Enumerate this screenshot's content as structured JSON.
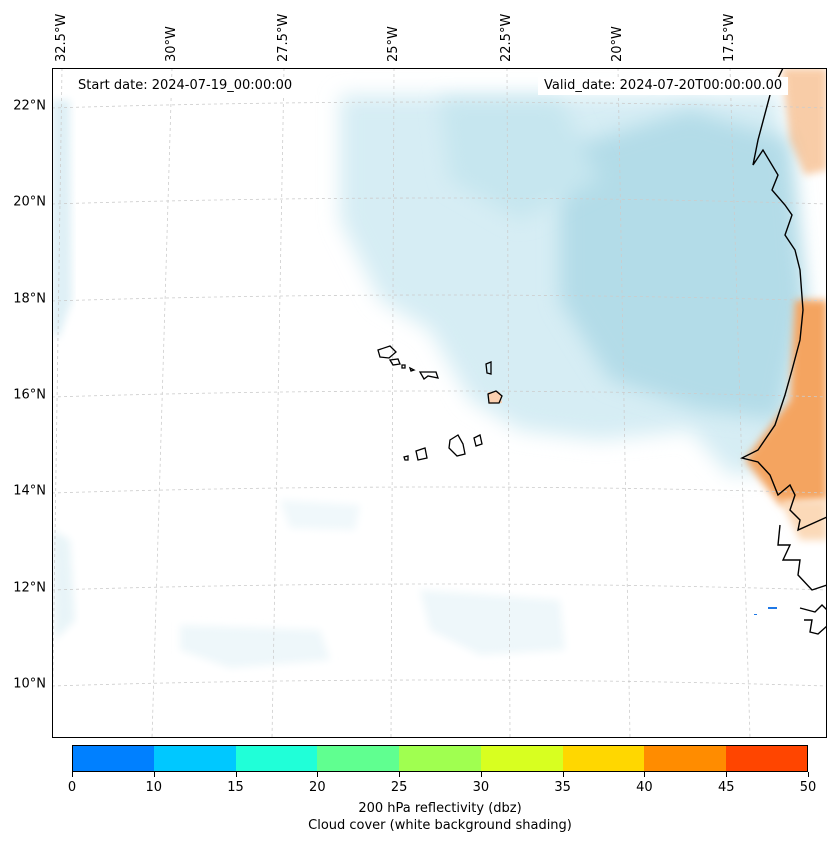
{
  "map": {
    "start_date": "Start date: 2024-07-19_00:00:00",
    "valid_date": "Valid_date: 2024-07-20T00:00:00.00",
    "longitude_labels": [
      "32.5°W",
      "30°W",
      "27.5°W",
      "25°W",
      "22.5°W",
      "20°W",
      "17.5°W"
    ],
    "latitude_labels": [
      "22°N",
      "20°N",
      "18°N",
      "16°N",
      "14°N",
      "12°N",
      "10°N"
    ]
  },
  "colorbar": {
    "colors": [
      "#0080ff",
      "#00c8ff",
      "#20ffd8",
      "#60ff90",
      "#a0ff50",
      "#d8ff20",
      "#ffd700",
      "#ff8c00",
      "#ff4500"
    ],
    "tick_labels": [
      "0",
      "10",
      "15",
      "20",
      "25",
      "30",
      "35",
      "40",
      "45",
      "50"
    ],
    "label_line1": "200 hPa reflectivity (dbz)",
    "label_line2": "Cloud cover (white background shading)"
  },
  "colors": {
    "cloud": "#add8e6",
    "land_heat": "#f4a460",
    "coastline": "#000000"
  }
}
